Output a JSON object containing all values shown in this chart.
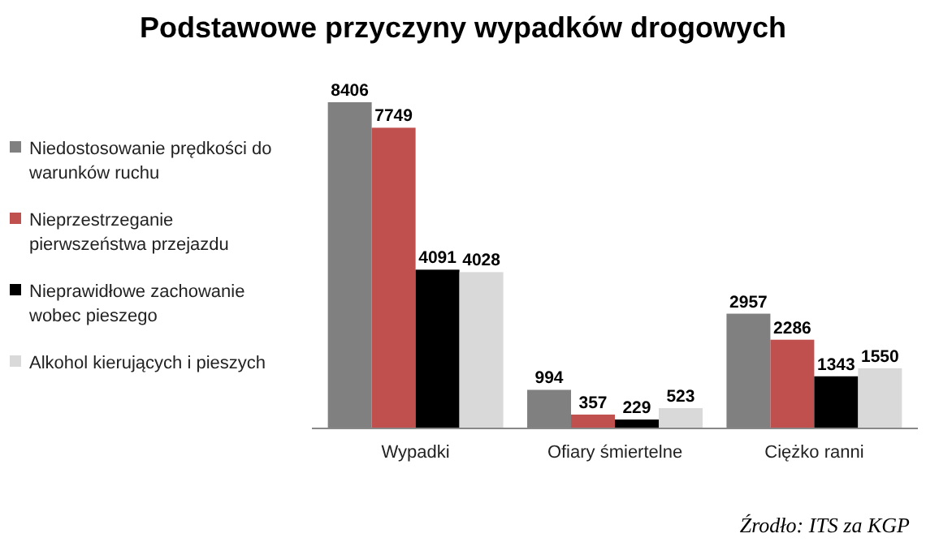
{
  "chart_data": {
    "type": "bar",
    "title": "Podstawowe przyczyny wypadków drogowych",
    "categories": [
      "Wypadki",
      "Ofiary śmiertelne",
      "Ciężko ranni"
    ],
    "series": [
      {
        "name": "Niedostosowanie prędkości do warunków ruchu",
        "color": "#808080",
        "values": [
          8406,
          994,
          2957
        ]
      },
      {
        "name": "Nieprzestrzeganie pierwszeństwa przejazdu",
        "color": "#c0504d",
        "values": [
          7749,
          357,
          2286
        ]
      },
      {
        "name": "Nieprawidłowe zachowanie wobec pieszego",
        "color": "#000000",
        "values": [
          4091,
          229,
          1343
        ]
      },
      {
        "name": "Alkohol kierujących i pieszych",
        "color": "#d9d9d9",
        "values": [
          4028,
          523,
          1550
        ]
      }
    ],
    "data_labels": true,
    "legend": "left",
    "annotations": [
      "Źrodło: ITS za KGP"
    ]
  }
}
